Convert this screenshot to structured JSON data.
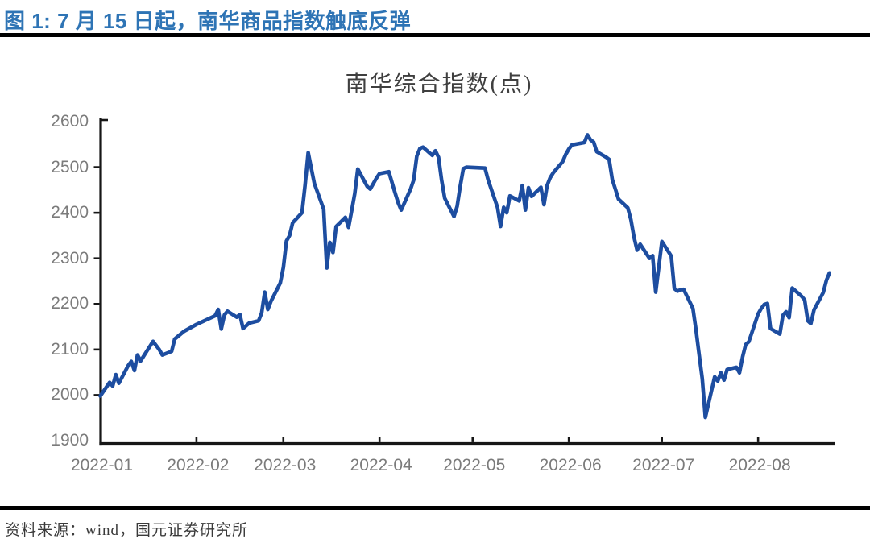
{
  "page": {
    "figure_title": "图 1: 7 月 15 日起，南华商品指数触底反弹",
    "source_note": "资料来源：wind，国元证券研究所"
  },
  "colors": {
    "figure_title_blue": "#2e74b5",
    "line_blue": "#1d4da0",
    "axis_black": "#161616",
    "tick_label_gray": "#7b7b7b",
    "chart_title_gray": "#3f3f3f",
    "rule_black": "#000000"
  },
  "chart_data": {
    "type": "line",
    "title": "南华综合指数(点)",
    "xlabel": "",
    "ylabel": "",
    "ylim": [
      1900,
      2600
    ],
    "grid": false,
    "legend_position": "none",
    "y_ticks": [
      2600,
      2500,
      2400,
      2300,
      2200,
      2100,
      2000,
      1900
    ],
    "x_tick_labels": [
      "2022-01",
      "2022-02",
      "2022-03",
      "2022-04",
      "2022-05",
      "2022-06",
      "2022-07",
      "2022-08"
    ],
    "series": [
      {
        "name": "南华综合指数",
        "points": [
          [
            "2022-01-01",
            1998
          ],
          [
            "2022-01-04",
            2028
          ],
          [
            "2022-01-05",
            2020
          ],
          [
            "2022-01-06",
            2045
          ],
          [
            "2022-01-07",
            2026
          ],
          [
            "2022-01-10",
            2065
          ],
          [
            "2022-01-11",
            2074
          ],
          [
            "2022-01-12",
            2054
          ],
          [
            "2022-01-13",
            2088
          ],
          [
            "2022-01-14",
            2075
          ],
          [
            "2022-01-18",
            2118
          ],
          [
            "2022-01-20",
            2100
          ],
          [
            "2022-01-21",
            2088
          ],
          [
            "2022-01-24",
            2096
          ],
          [
            "2022-01-25",
            2123
          ],
          [
            "2022-01-28",
            2140
          ],
          [
            "2022-02-01",
            2155
          ],
          [
            "2022-02-07",
            2174
          ],
          [
            "2022-02-08",
            2188
          ],
          [
            "2022-02-09",
            2145
          ],
          [
            "2022-02-10",
            2176
          ],
          [
            "2022-02-11",
            2184
          ],
          [
            "2022-02-14",
            2171
          ],
          [
            "2022-02-15",
            2177
          ],
          [
            "2022-02-16",
            2146
          ],
          [
            "2022-02-17",
            2152
          ],
          [
            "2022-02-18",
            2158
          ],
          [
            "2022-02-21",
            2163
          ],
          [
            "2022-02-22",
            2180
          ],
          [
            "2022-02-23",
            2226
          ],
          [
            "2022-02-24",
            2188
          ],
          [
            "2022-02-25",
            2206
          ],
          [
            "2022-02-28",
            2246
          ],
          [
            "2022-03-01",
            2280
          ],
          [
            "2022-03-02",
            2338
          ],
          [
            "2022-03-03",
            2350
          ],
          [
            "2022-03-04",
            2378
          ],
          [
            "2022-03-07",
            2400
          ],
          [
            "2022-03-08",
            2460
          ],
          [
            "2022-03-09",
            2532
          ],
          [
            "2022-03-10",
            2498
          ],
          [
            "2022-03-11",
            2464
          ],
          [
            "2022-03-14",
            2408
          ],
          [
            "2022-03-15",
            2279
          ],
          [
            "2022-03-16",
            2335
          ],
          [
            "2022-03-17",
            2313
          ],
          [
            "2022-03-18",
            2370
          ],
          [
            "2022-03-21",
            2390
          ],
          [
            "2022-03-22",
            2368
          ],
          [
            "2022-03-23",
            2404
          ],
          [
            "2022-03-24",
            2442
          ],
          [
            "2022-03-25",
            2496
          ],
          [
            "2022-03-28",
            2458
          ],
          [
            "2022-03-29",
            2452
          ],
          [
            "2022-03-30",
            2464
          ],
          [
            "2022-03-31",
            2476
          ],
          [
            "2022-04-01",
            2486
          ],
          [
            "2022-04-04",
            2490
          ],
          [
            "2022-04-06",
            2444
          ],
          [
            "2022-04-07",
            2422
          ],
          [
            "2022-04-08",
            2406
          ],
          [
            "2022-04-11",
            2452
          ],
          [
            "2022-04-12",
            2472
          ],
          [
            "2022-04-13",
            2524
          ],
          [
            "2022-04-14",
            2541
          ],
          [
            "2022-04-15",
            2544
          ],
          [
            "2022-04-18",
            2526
          ],
          [
            "2022-04-19",
            2536
          ],
          [
            "2022-04-20",
            2522
          ],
          [
            "2022-04-21",
            2472
          ],
          [
            "2022-04-22",
            2432
          ],
          [
            "2022-04-25",
            2392
          ],
          [
            "2022-04-26",
            2414
          ],
          [
            "2022-04-27",
            2458
          ],
          [
            "2022-04-28",
            2497
          ],
          [
            "2022-04-29",
            2500
          ],
          [
            "2022-05-05",
            2498
          ],
          [
            "2022-05-06",
            2472
          ],
          [
            "2022-05-09",
            2412
          ],
          [
            "2022-05-10",
            2370
          ],
          [
            "2022-05-11",
            2412
          ],
          [
            "2022-05-12",
            2400
          ],
          [
            "2022-05-13",
            2437
          ],
          [
            "2022-05-16",
            2426
          ],
          [
            "2022-05-17",
            2460
          ],
          [
            "2022-05-18",
            2406
          ],
          [
            "2022-05-19",
            2455
          ],
          [
            "2022-05-20",
            2436
          ],
          [
            "2022-05-23",
            2456
          ],
          [
            "2022-05-24",
            2418
          ],
          [
            "2022-05-25",
            2460
          ],
          [
            "2022-05-26",
            2477
          ],
          [
            "2022-05-27",
            2488
          ],
          [
            "2022-05-30",
            2512
          ],
          [
            "2022-05-31",
            2528
          ],
          [
            "2022-06-01",
            2540
          ],
          [
            "2022-06-02",
            2549
          ],
          [
            "2022-06-06",
            2554
          ],
          [
            "2022-06-07",
            2571
          ],
          [
            "2022-06-08",
            2560
          ],
          [
            "2022-06-09",
            2555
          ],
          [
            "2022-06-10",
            2534
          ],
          [
            "2022-06-13",
            2522
          ],
          [
            "2022-06-14",
            2517
          ],
          [
            "2022-06-15",
            2473
          ],
          [
            "2022-06-16",
            2452
          ],
          [
            "2022-06-17",
            2430
          ],
          [
            "2022-06-20",
            2411
          ],
          [
            "2022-06-21",
            2385
          ],
          [
            "2022-06-22",
            2347
          ],
          [
            "2022-06-23",
            2318
          ],
          [
            "2022-06-24",
            2331
          ],
          [
            "2022-06-27",
            2300
          ],
          [
            "2022-06-28",
            2306
          ],
          [
            "2022-06-29",
            2226
          ],
          [
            "2022-07-01",
            2337
          ],
          [
            "2022-07-04",
            2305
          ],
          [
            "2022-07-05",
            2234
          ],
          [
            "2022-07-06",
            2228
          ],
          [
            "2022-07-07",
            2231
          ],
          [
            "2022-07-08",
            2232
          ],
          [
            "2022-07-11",
            2190
          ],
          [
            "2022-07-12",
            2142
          ],
          [
            "2022-07-13",
            2089
          ],
          [
            "2022-07-14",
            2036
          ],
          [
            "2022-07-15",
            1951
          ],
          [
            "2022-07-18",
            2040
          ],
          [
            "2022-07-19",
            2031
          ],
          [
            "2022-07-20",
            2049
          ],
          [
            "2022-07-21",
            2033
          ],
          [
            "2022-07-22",
            2056
          ],
          [
            "2022-07-25",
            2061
          ],
          [
            "2022-07-26",
            2049
          ],
          [
            "2022-07-27",
            2084
          ],
          [
            "2022-07-28",
            2111
          ],
          [
            "2022-07-29",
            2117
          ],
          [
            "2022-08-01",
            2178
          ],
          [
            "2022-08-02",
            2190
          ],
          [
            "2022-08-03",
            2199
          ],
          [
            "2022-08-04",
            2201
          ],
          [
            "2022-08-05",
            2146
          ],
          [
            "2022-08-08",
            2134
          ],
          [
            "2022-08-09",
            2175
          ],
          [
            "2022-08-10",
            2183
          ],
          [
            "2022-08-11",
            2170
          ],
          [
            "2022-08-12",
            2235
          ],
          [
            "2022-08-15",
            2217
          ],
          [
            "2022-08-16",
            2209
          ],
          [
            "2022-08-17",
            2163
          ],
          [
            "2022-08-18",
            2157
          ],
          [
            "2022-08-19",
            2187
          ],
          [
            "2022-08-22",
            2225
          ],
          [
            "2022-08-23",
            2252
          ],
          [
            "2022-08-24",
            2268
          ]
        ]
      }
    ]
  }
}
